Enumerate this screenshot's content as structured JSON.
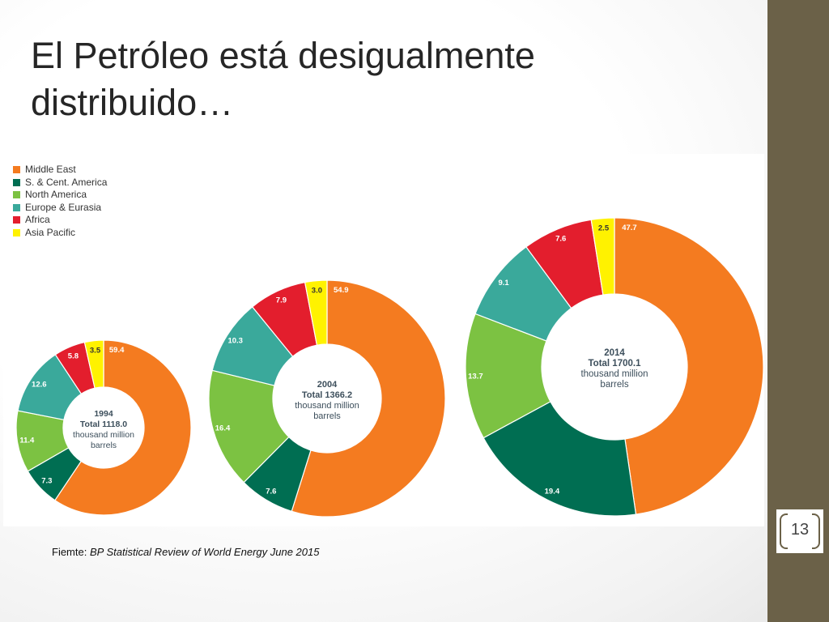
{
  "slide": {
    "title": "El Petróleo está desigualmente distribuido…",
    "page_number": "13",
    "source_prefix": "Fiemte: ",
    "source_name": "BP Statistical Review of World Energy June 2015"
  },
  "colors": {
    "Middle East": "#f47b20",
    "S. & Cent. America": "#006e52",
    "North America": "#7cc242",
    "Europe & Eurasia": "#3aa99b",
    "Africa": "#e31e2d",
    "Asia Pacific": "#fff200",
    "sidebar": "#6b6148"
  },
  "chart_data": {
    "type": "pie",
    "legend_position": "top-left",
    "unit": "thousand million barrels",
    "legend": [
      "Middle East",
      "S. & Cent. America",
      "North America",
      "Europe & Eurasia",
      "Africa",
      "Asia Pacific"
    ],
    "charts": [
      {
        "year": "1994",
        "total_label": "Total 1118.0",
        "unit_line1": "thousand million",
        "unit_line2": "barrels",
        "slices": [
          {
            "name": "Middle East",
            "value": 59.4,
            "label": "59.4"
          },
          {
            "name": "S. & Cent. America",
            "value": 7.3,
            "label": "7.3"
          },
          {
            "name": "North America",
            "value": 11.4,
            "label": "11.4"
          },
          {
            "name": "Europe & Eurasia",
            "value": 12.6,
            "label": "12.6"
          },
          {
            "name": "Africa",
            "value": 5.8,
            "label": "5.8"
          },
          {
            "name": "Asia Pacific",
            "value": 3.5,
            "label": "3.5"
          }
        ]
      },
      {
        "year": "2004",
        "total_label": "Total 1366.2",
        "unit_line1": "thousand million",
        "unit_line2": "barrels",
        "slices": [
          {
            "name": "Middle East",
            "value": 54.9,
            "label": "54.9"
          },
          {
            "name": "S. & Cent. America",
            "value": 7.6,
            "label": "7.6"
          },
          {
            "name": "North America",
            "value": 16.4,
            "label": "16.4"
          },
          {
            "name": "Europe & Eurasia",
            "value": 10.3,
            "label": "10.3"
          },
          {
            "name": "Africa",
            "value": 7.9,
            "label": "7.9"
          },
          {
            "name": "Asia Pacific",
            "value": 3.0,
            "label": "3.0"
          }
        ]
      },
      {
        "year": "2014",
        "total_label": "Total 1700.1",
        "unit_line1": "thousand million",
        "unit_line2": "barrels",
        "slices": [
          {
            "name": "Middle East",
            "value": 47.7,
            "label": "47.7"
          },
          {
            "name": "S. & Cent. America",
            "value": 19.4,
            "label": "19.4"
          },
          {
            "name": "North America",
            "value": 13.7,
            "label": "13.7"
          },
          {
            "name": "Europe & Eurasia",
            "value": 9.1,
            "label": "9.1"
          },
          {
            "name": "Africa",
            "value": 7.6,
            "label": "7.6"
          },
          {
            "name": "Asia Pacific",
            "value": 2.5,
            "label": "2.5"
          }
        ]
      }
    ]
  }
}
